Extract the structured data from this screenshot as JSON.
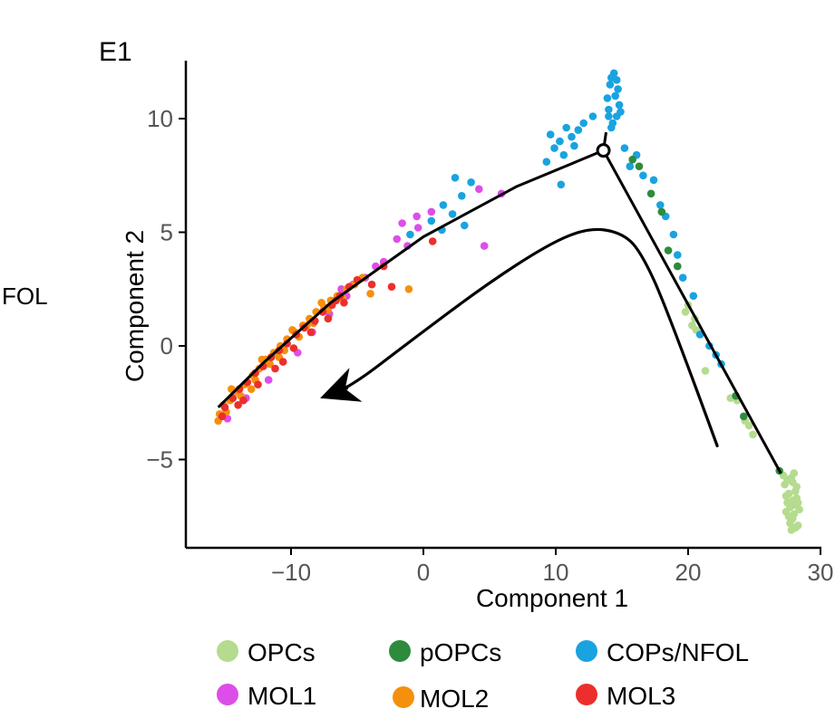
{
  "panel_label": "E1",
  "side_label": "FOL",
  "chart_data": {
    "type": "scatter",
    "title": "",
    "xlabel": "Component 1",
    "ylabel": "Component 2",
    "xlim": [
      -18,
      30
    ],
    "ylim": [
      -9,
      12.5
    ],
    "xticks": [
      -10,
      0,
      10,
      20,
      30
    ],
    "yticks": [
      -5,
      0,
      5,
      10
    ],
    "xtick_labels": [
      "−10",
      "0",
      "10",
      "20",
      "30"
    ],
    "ytick_labels": [
      "−5",
      "0",
      "5",
      "10"
    ],
    "grid": false,
    "legend_position": "bottom",
    "series": [
      {
        "name": "OPCs",
        "color": "#b5db8f",
        "points": [
          [
            28.0,
            -7.0
          ],
          [
            27.6,
            -6.5
          ],
          [
            27.9,
            -7.6
          ],
          [
            28.2,
            -6.2
          ],
          [
            27.4,
            -7.3
          ],
          [
            28.3,
            -7.9
          ],
          [
            27.8,
            -5.8
          ],
          [
            27.5,
            -6.9
          ],
          [
            28.1,
            -8.0
          ],
          [
            27.7,
            -7.8
          ],
          [
            27.3,
            -6.1
          ],
          [
            28.4,
            -7.2
          ],
          [
            27.9,
            -6.0
          ],
          [
            27.6,
            -7.5
          ],
          [
            28.2,
            -6.7
          ],
          [
            27.4,
            -6.6
          ],
          [
            28.0,
            -7.4
          ],
          [
            27.8,
            -8.1
          ],
          [
            28.3,
            -6.9
          ],
          [
            27.5,
            -5.9
          ],
          [
            28.1,
            -6.4
          ],
          [
            27.7,
            -7.1
          ],
          [
            28.0,
            -5.6
          ],
          [
            27.9,
            -6.8
          ],
          [
            24.6,
            -3.5
          ],
          [
            24.3,
            -3.3
          ],
          [
            24.9,
            -3.9
          ],
          [
            23.7,
            -2.4
          ],
          [
            23.2,
            -2.3
          ],
          [
            21.3,
            -1.1
          ],
          [
            20.6,
            0.7
          ],
          [
            20.3,
            0.9
          ],
          [
            20.0,
            1.8
          ],
          [
            20.5,
            1.2
          ],
          [
            19.8,
            1.5
          ],
          [
            27.2,
            -5.7
          ]
        ]
      },
      {
        "name": "pOPCs",
        "color": "#2e8b3e",
        "points": [
          [
            15.8,
            8.2
          ],
          [
            16.3,
            7.9
          ],
          [
            17.2,
            6.7
          ],
          [
            18.0,
            5.9
          ],
          [
            18.5,
            4.2
          ],
          [
            19.2,
            3.5
          ],
          [
            24.2,
            -3.1
          ],
          [
            26.9,
            -5.5
          ],
          [
            23.6,
            -2.2
          ]
        ]
      },
      {
        "name": "COPs/NFOL",
        "color": "#19a3e0",
        "points": [
          [
            14.1,
            11.5
          ],
          [
            14.5,
            11.0
          ],
          [
            14.0,
            10.4
          ],
          [
            14.6,
            10.1
          ],
          [
            14.2,
            11.8
          ],
          [
            14.8,
            10.6
          ],
          [
            14.3,
            9.8
          ],
          [
            14.7,
            11.3
          ],
          [
            13.9,
            10.9
          ],
          [
            14.4,
            12.0
          ],
          [
            14.9,
            10.3
          ],
          [
            14.2,
            9.6
          ],
          [
            14.6,
            11.7
          ],
          [
            14.0,
            10.1
          ],
          [
            12.1,
            9.8
          ],
          [
            11.7,
            9.5
          ],
          [
            11.2,
            9.2
          ],
          [
            10.8,
            9.6
          ],
          [
            10.3,
            9.0
          ],
          [
            9.6,
            9.3
          ],
          [
            10.6,
            8.4
          ],
          [
            9.3,
            8.1
          ],
          [
            12.8,
            10.1
          ],
          [
            11.4,
            8.8
          ],
          [
            9.9,
            8.7
          ],
          [
            10.4,
            7.1
          ],
          [
            15.2,
            8.7
          ],
          [
            15.6,
            7.9
          ],
          [
            16.1,
            8.4
          ],
          [
            16.6,
            7.5
          ],
          [
            17.4,
            7.3
          ],
          [
            17.9,
            6.2
          ],
          [
            18.3,
            5.7
          ],
          [
            18.9,
            4.9
          ],
          [
            19.2,
            4.0
          ],
          [
            19.6,
            3.0
          ],
          [
            20.4,
            2.2
          ],
          [
            20.9,
            0.5
          ],
          [
            21.6,
            0.0
          ],
          [
            22.1,
            -0.4
          ],
          [
            22.5,
            -0.8
          ],
          [
            2.4,
            7.4
          ],
          [
            3.6,
            7.2
          ],
          [
            2.9,
            6.6
          ],
          [
            1.5,
            6.2
          ],
          [
            2.2,
            5.8
          ],
          [
            0.6,
            5.5
          ],
          [
            1.4,
            5.1
          ],
          [
            -1.0,
            4.9
          ],
          [
            3.1,
            5.3
          ]
        ]
      },
      {
        "name": "MOL1",
        "color": "#dd4ee8",
        "points": [
          [
            5.9,
            6.7
          ],
          [
            4.2,
            6.9
          ],
          [
            0.6,
            5.9
          ],
          [
            -0.5,
            5.7
          ],
          [
            -1.6,
            5.4
          ],
          [
            -2.0,
            4.7
          ],
          [
            -1.2,
            4.4
          ],
          [
            -3.0,
            3.7
          ],
          [
            -3.6,
            3.5
          ],
          [
            -4.4,
            3.0
          ],
          [
            -5.3,
            2.7
          ],
          [
            -5.8,
            2.2
          ],
          [
            -7.1,
            1.4
          ],
          [
            -8.4,
            0.6
          ],
          [
            -9.5,
            -0.3
          ],
          [
            -11.7,
            -1.5
          ],
          [
            -13.4,
            -2.3
          ],
          [
            -14.8,
            -3.2
          ],
          [
            4.6,
            4.4
          ],
          [
            -6.2,
            2.5
          ],
          [
            -0.4,
            5.2
          ]
        ]
      },
      {
        "name": "MOL2",
        "color": "#f5900c",
        "points": [
          [
            -15.4,
            -3.0
          ],
          [
            -15.1,
            -2.6
          ],
          [
            -14.6,
            -2.4
          ],
          [
            -14.1,
            -2.0
          ],
          [
            -13.5,
            -1.7
          ],
          [
            -12.9,
            -1.3
          ],
          [
            -12.4,
            -1.0
          ],
          [
            -11.9,
            -0.6
          ],
          [
            -11.3,
            -0.3
          ],
          [
            -10.8,
            0.0
          ],
          [
            -10.3,
            0.3
          ],
          [
            -9.7,
            0.6
          ],
          [
            -9.1,
            0.9
          ],
          [
            -8.6,
            1.2
          ],
          [
            -8.1,
            1.5
          ],
          [
            -7.5,
            1.7
          ],
          [
            -7.0,
            2.0
          ],
          [
            -6.5,
            2.2
          ],
          [
            -5.8,
            2.5
          ],
          [
            -5.2,
            2.7
          ],
          [
            -4.6,
            3.0
          ],
          [
            -15.5,
            -3.3
          ],
          [
            -14.9,
            -2.9
          ],
          [
            -13.8,
            -2.2
          ],
          [
            -12.7,
            -1.5
          ],
          [
            -11.6,
            -0.8
          ],
          [
            -10.5,
            -0.2
          ],
          [
            -9.4,
            0.4
          ],
          [
            -8.3,
            1.0
          ],
          [
            -7.2,
            1.6
          ],
          [
            -6.1,
            2.1
          ],
          [
            -13.0,
            -1.9
          ],
          [
            -10.9,
            -0.5
          ],
          [
            -8.8,
            0.9
          ],
          [
            -1.1,
            2.5
          ],
          [
            -4.0,
            2.3
          ],
          [
            -14.5,
            -1.9
          ],
          [
            -12.2,
            -0.6
          ],
          [
            -9.9,
            0.7
          ],
          [
            -7.7,
            1.9
          ]
        ]
      },
      {
        "name": "MOL3",
        "color": "#ec2f2c",
        "points": [
          [
            -15.0,
            -2.7
          ],
          [
            -14.4,
            -2.3
          ],
          [
            -13.9,
            -1.9
          ],
          [
            -13.3,
            -1.6
          ],
          [
            -12.7,
            -1.2
          ],
          [
            -12.1,
            -0.9
          ],
          [
            -11.5,
            -0.5
          ],
          [
            -10.9,
            -0.2
          ],
          [
            -10.3,
            0.1
          ],
          [
            -9.6,
            0.5
          ],
          [
            -9.0,
            0.8
          ],
          [
            -8.2,
            1.1
          ],
          [
            -7.6,
            1.5
          ],
          [
            -6.9,
            1.8
          ],
          [
            -6.3,
            2.2
          ],
          [
            -5.6,
            2.6
          ],
          [
            -5.0,
            2.9
          ],
          [
            -3.9,
            2.7
          ],
          [
            -3.0,
            3.5
          ],
          [
            0.7,
            4.6
          ],
          [
            -15.2,
            -3.1
          ],
          [
            -14.0,
            -2.6
          ],
          [
            -12.5,
            -1.7
          ],
          [
            -11.2,
            -1.0
          ],
          [
            -9.8,
            -0.1
          ],
          [
            -8.5,
            0.6
          ],
          [
            -7.2,
            1.2
          ],
          [
            -6.0,
            1.9
          ],
          [
            -2.4,
            2.6
          ],
          [
            -13.6,
            -2.4
          ],
          [
            -10.6,
            -0.7
          ],
          [
            -6.6,
            2.0
          ]
        ]
      }
    ],
    "trajectory": [
      [
        27.0,
        -5.6
      ],
      [
        13.6,
        8.6
      ],
      [
        7.0,
        7.0
      ],
      [
        0.0,
        4.8
      ],
      [
        -7.0,
        1.9
      ],
      [
        -12.0,
        -0.7
      ],
      [
        -15.5,
        -2.7
      ]
    ],
    "branch_stub": [
      [
        13.6,
        8.6
      ],
      [
        13.8,
        9.4
      ]
    ],
    "branch_point": [
      13.6,
      8.6
    ],
    "arrow_path": [
      [
        22.2,
        -4.4
      ],
      [
        18.5,
        1.5
      ],
      [
        16.4,
        4.2
      ],
      [
        14.9,
        5.0
      ],
      [
        12.5,
        5.2
      ],
      [
        9.5,
        4.5
      ],
      [
        4.5,
        2.6
      ],
      [
        -1.0,
        0.2
      ],
      [
        -5.5,
        -1.8
      ],
      [
        -7.8,
        -2.3
      ]
    ]
  },
  "legend": [
    {
      "label": "OPCs",
      "color": "#b5db8f"
    },
    {
      "label": "pOPCs",
      "color": "#2e8b3e"
    },
    {
      "label": "COPs/NFOL",
      "color": "#19a3e0"
    },
    {
      "label": "MOL1",
      "color": "#dd4ee8"
    },
    {
      "label": "MOL2",
      "color": "#f5900c"
    },
    {
      "label": "MOL3",
      "color": "#ec2f2c"
    }
  ]
}
